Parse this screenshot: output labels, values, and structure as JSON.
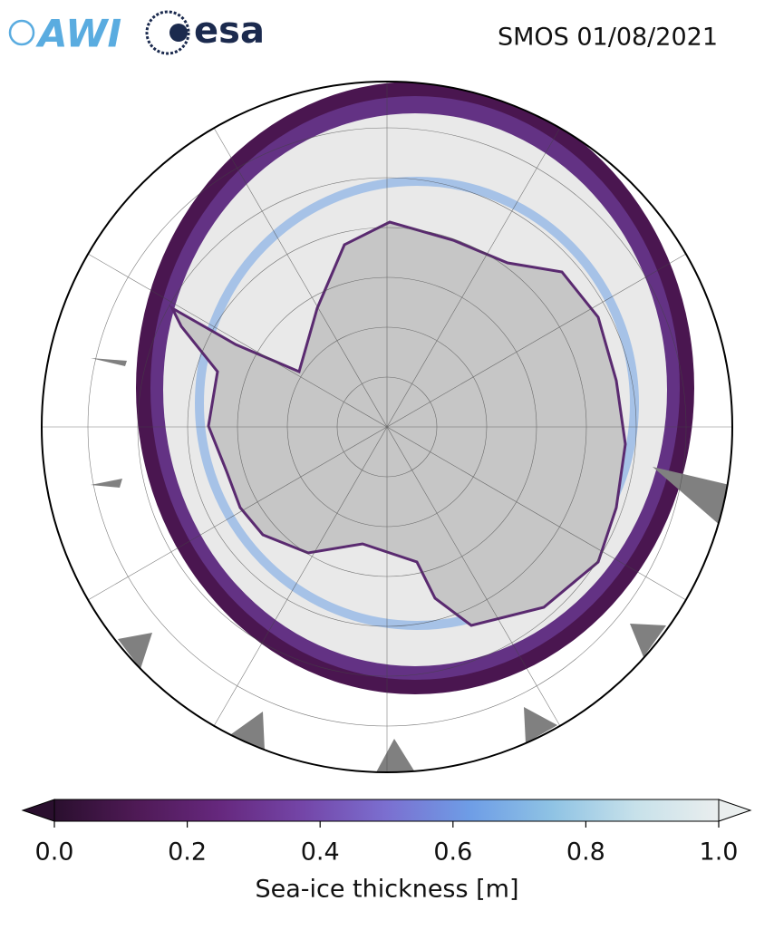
{
  "logos": [
    "AWI",
    "esa"
  ],
  "title": "SMOS 01/08/2021",
  "colorbar": {
    "label": "Sea-ice thickness [m]",
    "lim": [
      0,
      1
    ],
    "ticks": [
      {
        "value": 0,
        "label": "0.0"
      },
      {
        "value": 0.2,
        "label": "0.2"
      },
      {
        "value": 0.4,
        "label": "0.4"
      },
      {
        "value": 0.6,
        "label": "0.6"
      },
      {
        "value": 0.8,
        "label": "0.8"
      },
      {
        "value": 1,
        "label": "1.0"
      }
    ],
    "colors": [
      "#2a0f2e",
      "#4f1a56",
      "#66287e",
      "#7446a8",
      "#7b6fd0",
      "#6e9de6",
      "#8fc3e4",
      "#c7e1ea",
      "#eaeeee"
    ]
  }
}
